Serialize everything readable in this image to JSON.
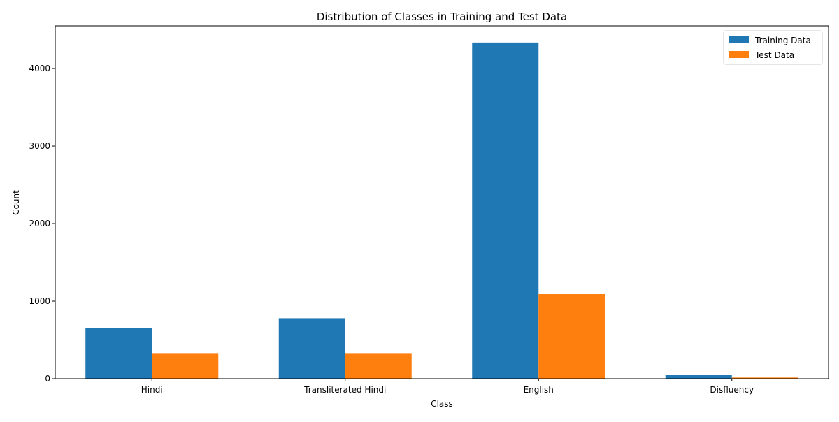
{
  "chart_data": {
    "type": "bar",
    "title": "Distribution of Classes in Training and Test Data",
    "xlabel": "Class",
    "ylabel": "Count",
    "categories": [
      "Hindi",
      "Transliterated Hindi",
      "English",
      "Disfluency"
    ],
    "series": [
      {
        "name": "Training Data",
        "color": "#1f77b4",
        "values": [
          655,
          780,
          4335,
          45
        ]
      },
      {
        "name": "Test Data",
        "color": "#ff7f0e",
        "values": [
          330,
          330,
          1090,
          15
        ]
      }
    ],
    "ylim": [
      0,
      4550
    ],
    "yticks": [
      0,
      1000,
      2000,
      3000,
      4000
    ],
    "grid": false,
    "legend_position": "top-right"
  }
}
